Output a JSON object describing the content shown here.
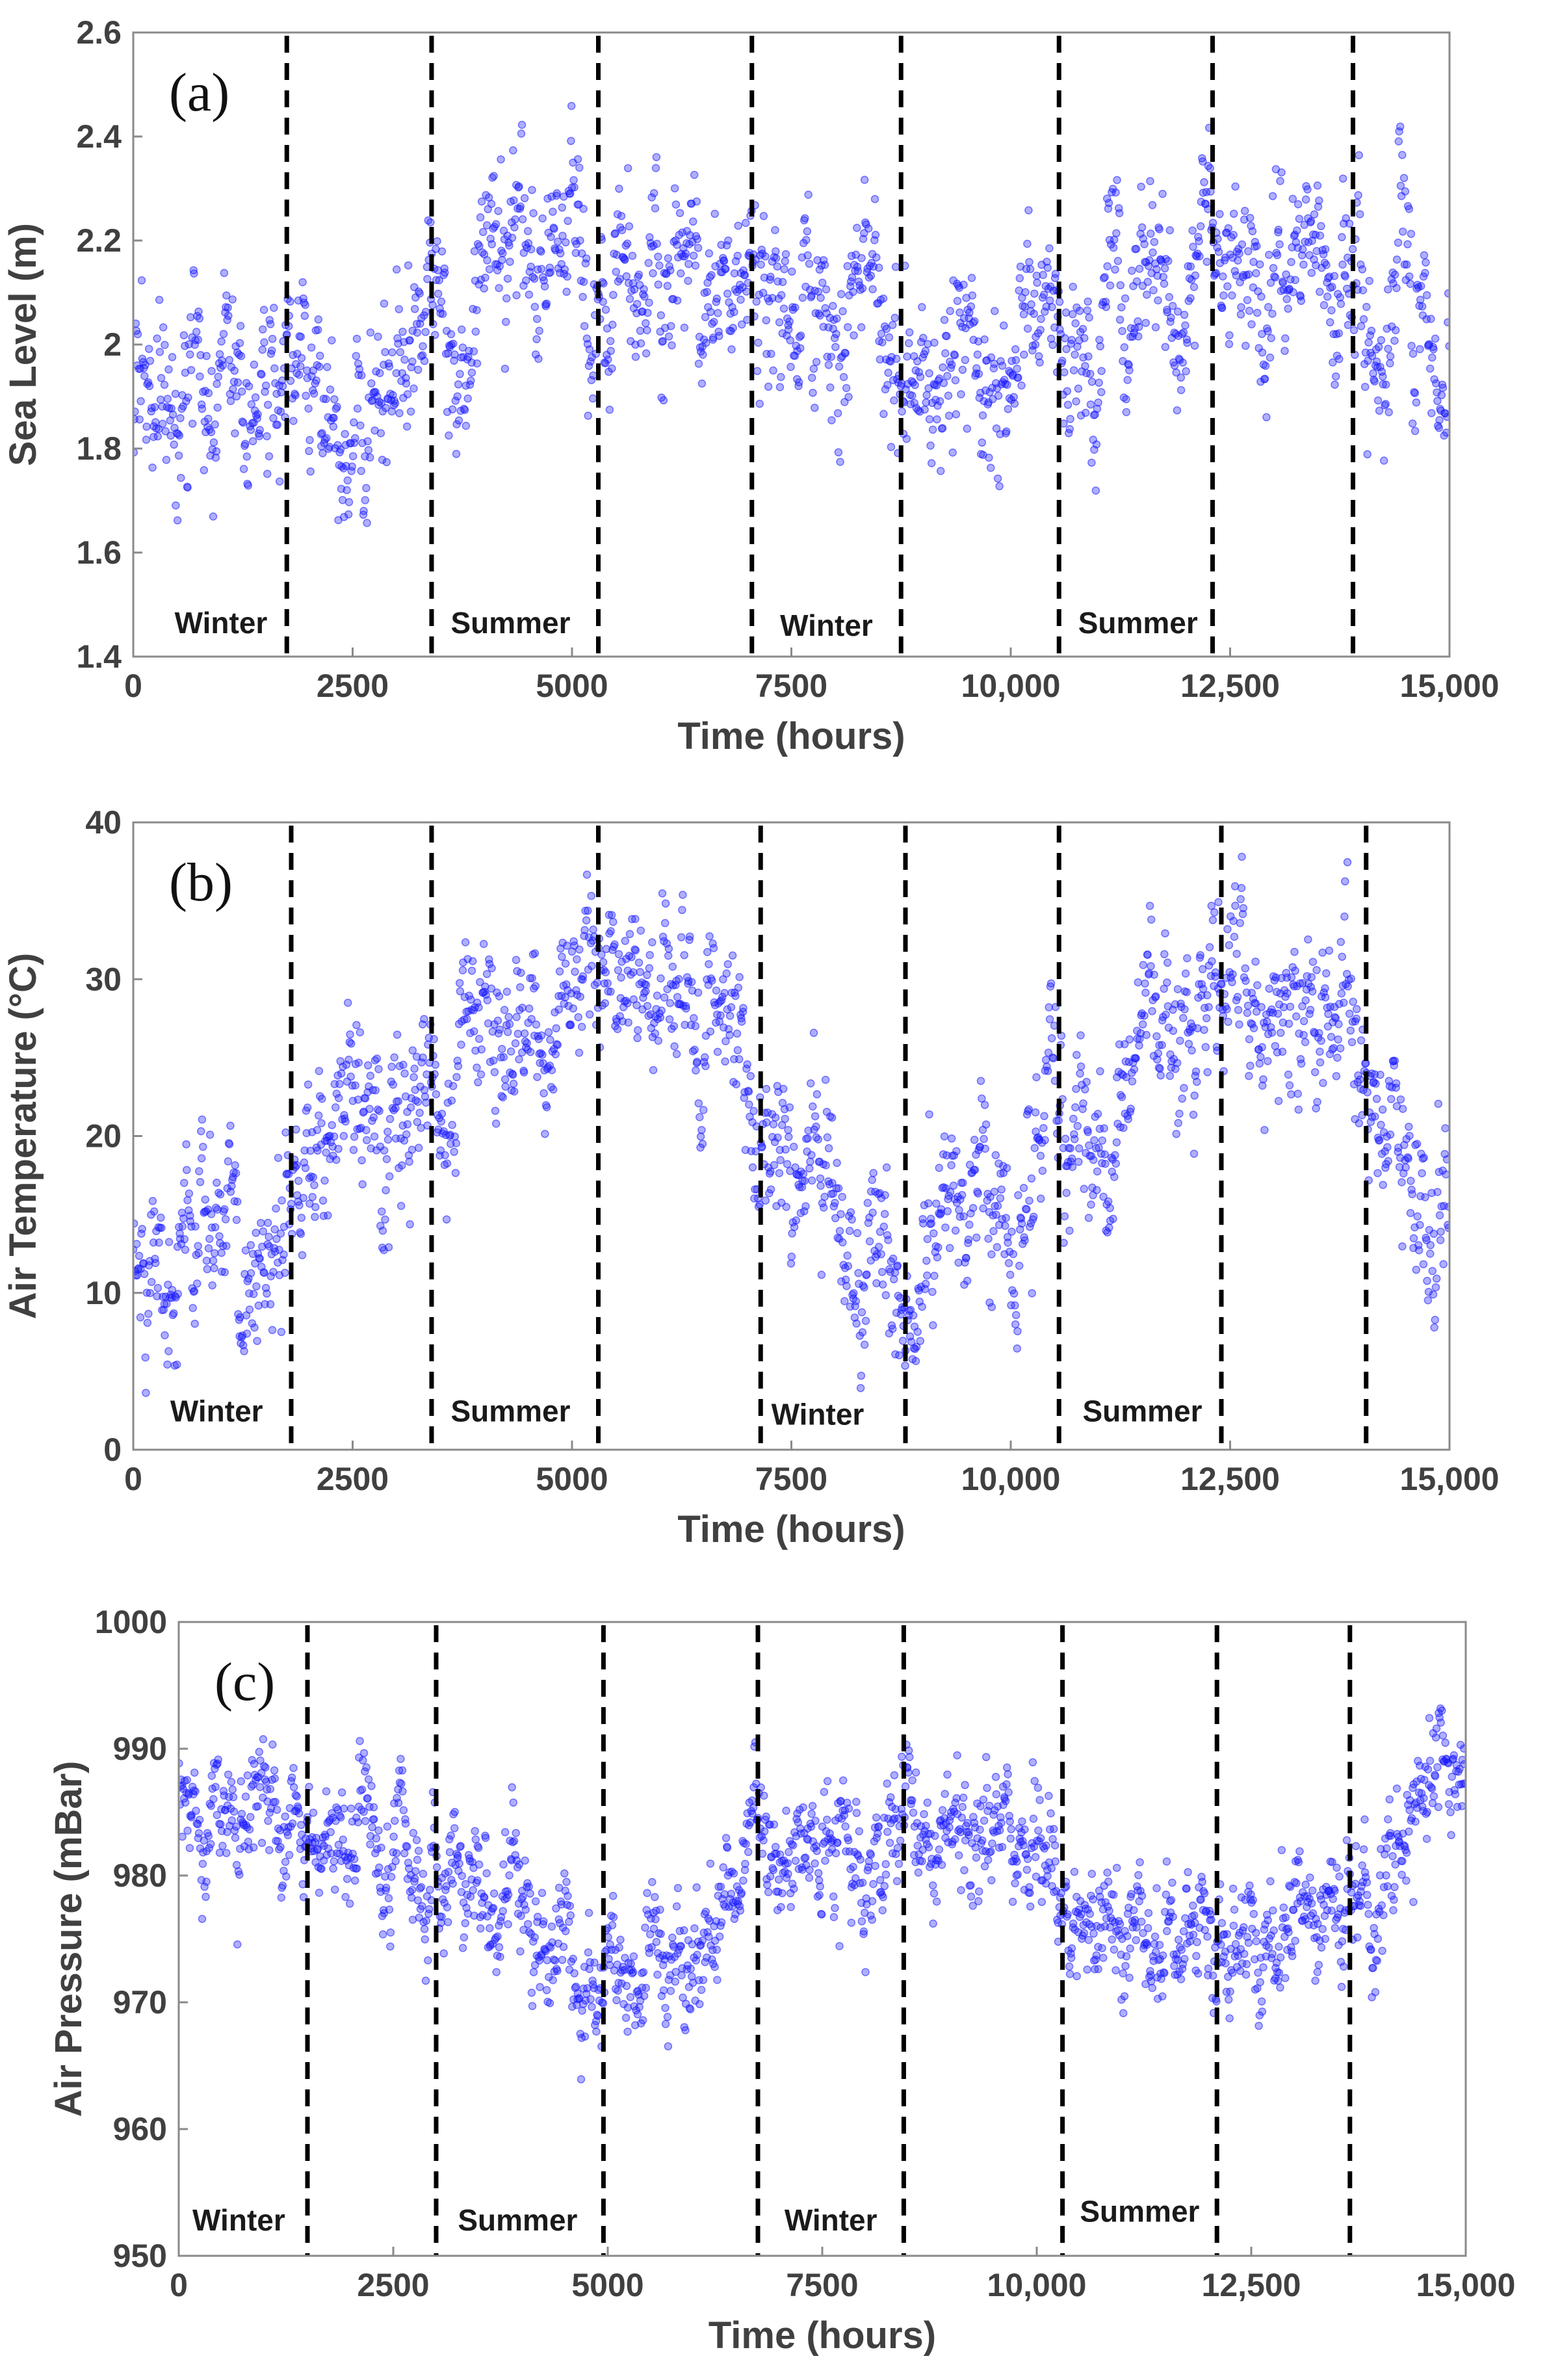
{
  "chart_data": [
    {
      "type": "scatter",
      "panel_label": "(a)",
      "xlabel": "Time (hours)",
      "ylabel": "Sea Level (m)",
      "xlim": [
        0,
        15000
      ],
      "ylim": [
        1.4,
        2.6
      ],
      "xticks": [
        0,
        2500,
        5000,
        7500,
        10000,
        12500,
        15000
      ],
      "xtick_labels": [
        "0",
        "2500",
        "5000",
        "7500",
        "10,000",
        "12,500",
        "15,000"
      ],
      "yticks": [
        1.4,
        1.6,
        1.8,
        2.0,
        2.2,
        2.4,
        2.6
      ],
      "ytick_labels": [
        "1.4",
        "1.6",
        "1.8",
        "2",
        "2.2",
        "2.4",
        "2.6"
      ],
      "grid": false,
      "marker_color": "#1a1aff",
      "season_boundaries": [
        1750,
        3400,
        5300,
        7050,
        8750,
        10550,
        12300,
        13900
      ],
      "season_labels": [
        {
          "text": "Winter",
          "x": 1000,
          "y": 1.445
        },
        {
          "text": "Summer",
          "x": 4300,
          "y": 1.445
        },
        {
          "text": "Winter",
          "x": 7900,
          "y": 1.44
        },
        {
          "text": "Summer",
          "x": 11450,
          "y": 1.445
        }
      ],
      "trend": {
        "x": [
          0,
          1000,
          2000,
          3000,
          4000,
          5000,
          6000,
          7000,
          8000,
          9000,
          10000,
          11000,
          12000,
          13000,
          14000,
          15000
        ],
        "y": [
          1.9,
          1.92,
          1.91,
          1.97,
          2.1,
          2.18,
          2.17,
          2.08,
          2.04,
          2.01,
          1.96,
          2.05,
          2.15,
          2.15,
          2.11,
          1.96
        ]
      },
      "spread": 0.1,
      "point_count": 1800
    },
    {
      "type": "scatter",
      "panel_label": "(b)",
      "xlabel": "Time (hours)",
      "ylabel": "Air Temperature (°C)",
      "xlim": [
        0,
        15000
      ],
      "ylim": [
        0,
        40
      ],
      "xticks": [
        0,
        2500,
        5000,
        7500,
        10000,
        12500,
        15000
      ],
      "xtick_labels": [
        "0",
        "2500",
        "5000",
        "7500",
        "10,000",
        "12,500",
        "15,000"
      ],
      "yticks": [
        0,
        10,
        20,
        30,
        40
      ],
      "ytick_labels": [
        "0",
        "10",
        "20",
        "30",
        "40"
      ],
      "grid": false,
      "marker_color": "#1a1aff",
      "season_boundaries": [
        1800,
        3400,
        5300,
        7150,
        8800,
        10550,
        12400,
        14050
      ],
      "season_labels": [
        {
          "text": "Winter",
          "x": 950,
          "y": 1.8
        },
        {
          "text": "Summer",
          "x": 4300,
          "y": 1.8
        },
        {
          "text": "Winter",
          "x": 7800,
          "y": 1.6
        },
        {
          "text": "Summer",
          "x": 11500,
          "y": 1.8
        }
      ],
      "trend": {
        "x": [
          0,
          1000,
          2000,
          3000,
          4000,
          5000,
          5500,
          6000,
          7000,
          8000,
          8600,
          9000,
          10000,
          11000,
          12000,
          13000,
          14000,
          15000
        ],
        "y": [
          12,
          14,
          16,
          21,
          27,
          28,
          30,
          28,
          22,
          16,
          10,
          13,
          15,
          21,
          28,
          29,
          25,
          12
        ]
      },
      "spread": 3.2,
      "point_count": 1800
    },
    {
      "type": "scatter",
      "panel_label": "(c)",
      "xlabel": "Time (hours)",
      "ylabel": "Air Pressure (mBar)",
      "xlim": [
        0,
        15000
      ],
      "ylim": [
        950,
        1000
      ],
      "xticks": [
        0,
        2500,
        5000,
        7500,
        10000,
        12500,
        15000
      ],
      "xtick_labels": [
        "0",
        "2500",
        "5000",
        "7500",
        "10,000",
        "12,500",
        "15,000"
      ],
      "yticks": [
        950,
        960,
        970,
        980,
        990,
        1000
      ],
      "ytick_labels": [
        "950",
        "960",
        "970",
        "980",
        "990",
        "1000"
      ],
      "grid": false,
      "marker_color": "#1a1aff",
      "season_boundaries": [
        1500,
        3000,
        4950,
        6750,
        8450,
        10300,
        12100,
        13650
      ],
      "season_labels": [
        {
          "text": "Winter",
          "x": 700,
          "y": 952
        },
        {
          "text": "Summer",
          "x": 3950,
          "y": 952
        },
        {
          "text": "Winter",
          "x": 7600,
          "y": 952
        },
        {
          "text": "Summer",
          "x": 11200,
          "y": 952.7
        }
      ],
      "trend": {
        "x": [
          0,
          1000,
          2000,
          3000,
          4000,
          5000,
          6000,
          6800,
          7500,
          8500,
          9000,
          10000,
          11000,
          12000,
          13000,
          14000,
          15000
        ],
        "y": [
          987,
          985,
          981,
          979,
          976,
          973,
          975,
          981,
          984,
          986,
          982,
          981,
          978,
          975,
          975,
          979,
          990
        ]
      },
      "spread": 3.0,
      "point_count": 1800
    }
  ]
}
